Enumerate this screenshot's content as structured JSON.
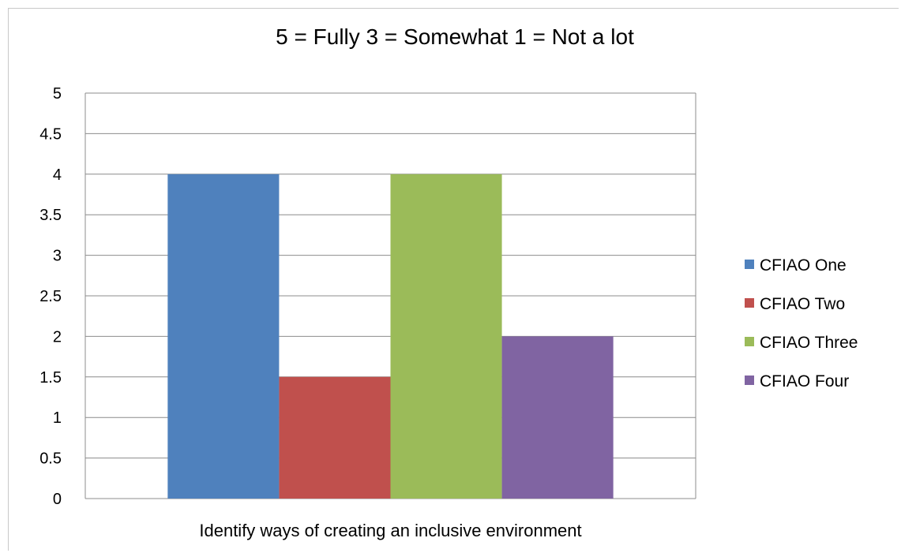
{
  "chart_data": {
    "type": "bar",
    "title": "5 = Fully  3 = Somewhat  1 = Not a lot",
    "xlabel": "",
    "ylabel": "",
    "categories": [
      "Identify ways of creating an inclusive environment"
    ],
    "series": [
      {
        "name": "CFIAO One",
        "values": [
          4
        ],
        "color": "#4F81BD"
      },
      {
        "name": "CFIAO Two",
        "values": [
          1.5
        ],
        "color": "#C0504D"
      },
      {
        "name": "CFIAO Three",
        "values": [
          4
        ],
        "color": "#9BBB59"
      },
      {
        "name": "CFIAO Four",
        "values": [
          2
        ],
        "color": "#8064A2"
      }
    ],
    "ylim": [
      0,
      5
    ],
    "yticks": [
      "0",
      "0.5",
      "1",
      "1.5",
      "2",
      "2.5",
      "3",
      "3.5",
      "4",
      "4.5",
      "5"
    ],
    "grid": true,
    "legend": "right"
  }
}
